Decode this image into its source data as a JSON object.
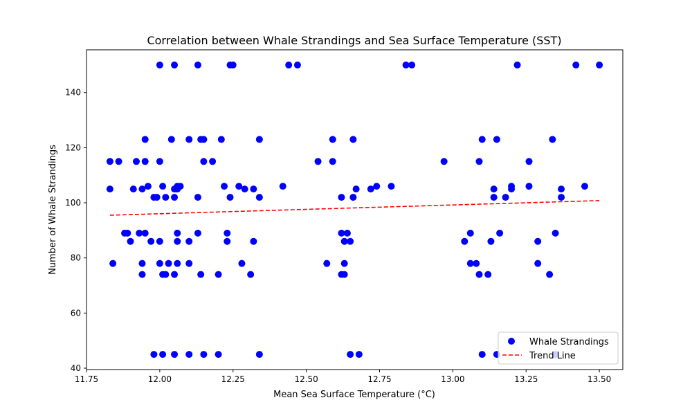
{
  "chart_data": {
    "type": "scatter",
    "title": "Correlation between Whale Strandings and Sea Surface Temperature (SST)",
    "xlabel": "Mean Sea Surface Temperature (°C)",
    "ylabel": "Number of Whale Strandings",
    "xlim": [
      11.75,
      13.58
    ],
    "ylim": [
      39.5,
      155.5
    ],
    "x_ticks": [
      11.75,
      12.0,
      12.25,
      12.5,
      12.75,
      13.0,
      13.25,
      13.5
    ],
    "x_tick_labels": [
      "11.75",
      "12.00",
      "12.25",
      "12.50",
      "12.75",
      "13.00",
      "13.25",
      "13.50"
    ],
    "y_ticks": [
      40,
      60,
      80,
      100,
      120,
      140
    ],
    "y_tick_labels": [
      "40",
      "60",
      "80",
      "100",
      "120",
      "140"
    ],
    "grid": false,
    "legend_position": "lower-right",
    "legend": [
      "Whale Strandings",
      "Trend Line"
    ],
    "colors": {
      "points": "#0000ff",
      "trend": "#ff0000"
    },
    "series": [
      {
        "name": "Whale Strandings",
        "kind": "scatter",
        "points": [
          [
            11.83,
            105
          ],
          [
            11.83,
            115
          ],
          [
            11.84,
            78
          ],
          [
            11.86,
            115
          ],
          [
            11.88,
            89
          ],
          [
            11.89,
            89
          ],
          [
            11.9,
            86
          ],
          [
            11.91,
            105
          ],
          [
            11.92,
            115
          ],
          [
            11.93,
            89
          ],
          [
            11.94,
            74
          ],
          [
            11.94,
            78
          ],
          [
            11.94,
            105
          ],
          [
            11.95,
            115
          ],
          [
            11.95,
            123
          ],
          [
            11.95,
            89
          ],
          [
            11.96,
            106
          ],
          [
            11.97,
            86
          ],
          [
            11.98,
            102
          ],
          [
            11.99,
            102
          ],
          [
            11.98,
            45
          ],
          [
            12.0,
            150
          ],
          [
            12.0,
            115
          ],
          [
            12.0,
            86
          ],
          [
            12.0,
            78
          ],
          [
            12.01,
            74
          ],
          [
            12.01,
            106
          ],
          [
            12.01,
            45
          ],
          [
            12.02,
            74
          ],
          [
            12.02,
            102
          ],
          [
            12.03,
            78
          ],
          [
            12.04,
            123
          ],
          [
            12.05,
            74
          ],
          [
            12.05,
            102
          ],
          [
            12.05,
            150
          ],
          [
            12.05,
            105
          ],
          [
            12.05,
            45
          ],
          [
            12.06,
            106
          ],
          [
            12.06,
            105
          ],
          [
            12.06,
            89
          ],
          [
            12.06,
            86
          ],
          [
            12.06,
            78
          ],
          [
            12.07,
            106
          ],
          [
            12.1,
            86
          ],
          [
            12.1,
            45
          ],
          [
            12.1,
            123
          ],
          [
            12.1,
            78
          ],
          [
            12.13,
            150
          ],
          [
            12.13,
            102
          ],
          [
            12.13,
            89
          ],
          [
            12.14,
            123
          ],
          [
            12.14,
            74
          ],
          [
            12.15,
            123
          ],
          [
            12.15,
            115
          ],
          [
            12.15,
            45
          ],
          [
            12.18,
            115
          ],
          [
            12.2,
            74
          ],
          [
            12.2,
            45
          ],
          [
            12.21,
            123
          ],
          [
            12.22,
            106
          ],
          [
            12.23,
            86
          ],
          [
            12.23,
            89
          ],
          [
            12.24,
            150
          ],
          [
            12.24,
            102
          ],
          [
            12.25,
            150
          ],
          [
            12.27,
            106
          ],
          [
            12.28,
            78
          ],
          [
            12.29,
            105
          ],
          [
            12.31,
            74
          ],
          [
            12.32,
            105
          ],
          [
            12.32,
            86
          ],
          [
            12.34,
            102
          ],
          [
            12.34,
            45
          ],
          [
            12.34,
            123
          ],
          [
            12.42,
            106
          ],
          [
            12.44,
            150
          ],
          [
            12.47,
            150
          ],
          [
            12.54,
            115
          ],
          [
            12.57,
            78
          ],
          [
            12.59,
            115
          ],
          [
            12.59,
            123
          ],
          [
            12.62,
            102
          ],
          [
            12.62,
            74
          ],
          [
            12.62,
            89
          ],
          [
            12.63,
            78
          ],
          [
            12.63,
            74
          ],
          [
            12.63,
            86
          ],
          [
            12.64,
            89
          ],
          [
            12.65,
            86
          ],
          [
            12.65,
            45
          ],
          [
            12.66,
            123
          ],
          [
            12.66,
            102
          ],
          [
            12.67,
            105
          ],
          [
            12.68,
            45
          ],
          [
            12.72,
            105
          ],
          [
            12.74,
            106
          ],
          [
            12.79,
            106
          ],
          [
            12.84,
            150
          ],
          [
            12.86,
            150
          ],
          [
            12.97,
            115
          ],
          [
            13.04,
            86
          ],
          [
            13.06,
            89
          ],
          [
            13.06,
            78
          ],
          [
            13.08,
            78
          ],
          [
            13.09,
            115
          ],
          [
            13.09,
            74
          ],
          [
            13.1,
            123
          ],
          [
            13.1,
            45
          ],
          [
            13.12,
            74
          ],
          [
            13.13,
            86
          ],
          [
            13.14,
            105
          ],
          [
            13.14,
            102
          ],
          [
            13.15,
            45
          ],
          [
            13.15,
            123
          ],
          [
            13.16,
            89
          ],
          [
            13.18,
            102
          ],
          [
            13.2,
            106
          ],
          [
            13.2,
            105
          ],
          [
            13.22,
            150
          ],
          [
            13.26,
            115
          ],
          [
            13.26,
            106
          ],
          [
            13.29,
            86
          ],
          [
            13.29,
            78
          ],
          [
            13.33,
            74
          ],
          [
            13.34,
            123
          ],
          [
            13.35,
            89
          ],
          [
            13.35,
            45
          ],
          [
            13.37,
            105
          ],
          [
            13.37,
            102
          ],
          [
            13.42,
            150
          ],
          [
            13.45,
            106
          ],
          [
            13.5,
            150
          ]
        ]
      },
      {
        "name": "Trend Line",
        "kind": "line",
        "style": "dashed",
        "points": [
          [
            11.83,
            95.5
          ],
          [
            13.5,
            100.8
          ]
        ]
      }
    ]
  }
}
